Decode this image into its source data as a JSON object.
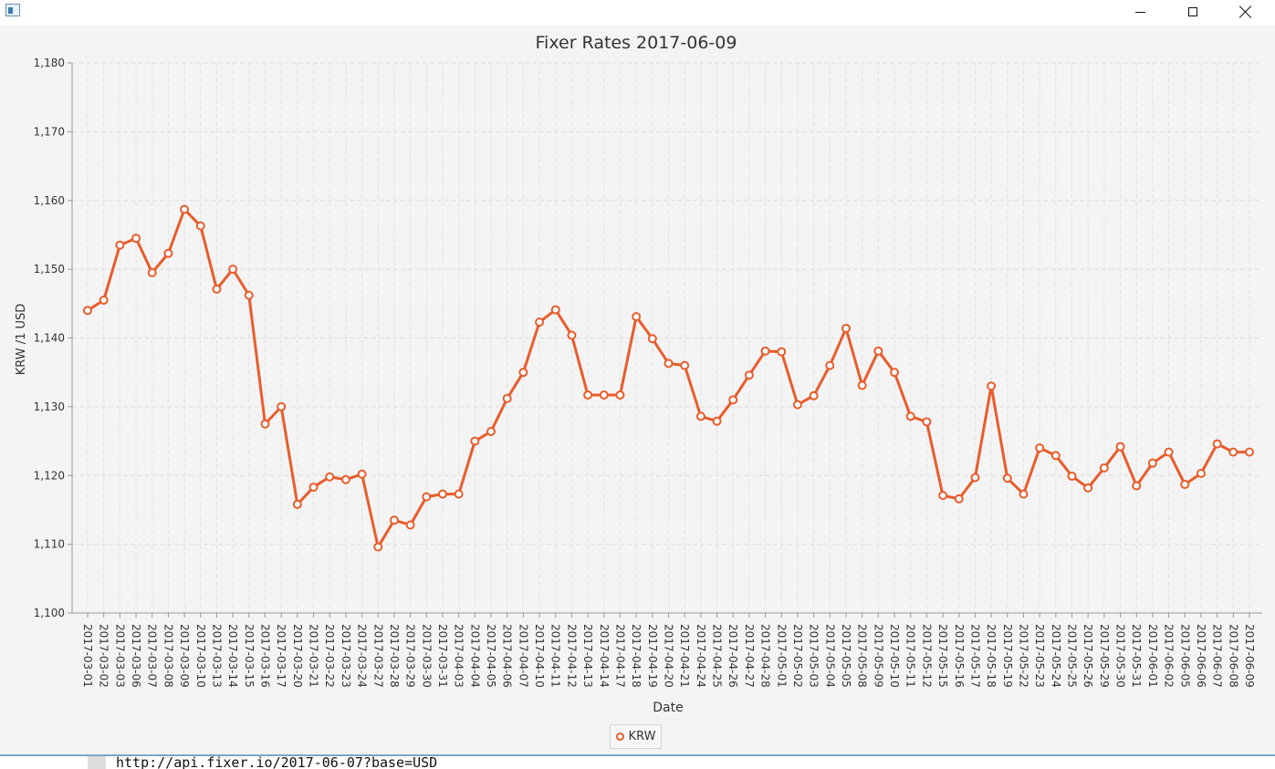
{
  "window": {
    "app_icon": "java-window-icon",
    "minimize_icon": "minimize-icon",
    "maximize_icon": "maximize-icon",
    "close_icon": "close-icon"
  },
  "chart_data": {
    "type": "line",
    "title": "Fixer Rates 2017-06-09",
    "xlabel": "Date",
    "ylabel": "KRW /1 USD",
    "ylim": [
      1100,
      1180
    ],
    "yticks": [
      1100,
      1110,
      1120,
      1130,
      1140,
      1150,
      1160,
      1170,
      1180
    ],
    "ytick_labels": [
      "1,100",
      "1,110",
      "1,120",
      "1,130",
      "1,140",
      "1,150",
      "1,160",
      "1,170",
      "1,180"
    ],
    "grid": true,
    "legend": "bottom-center",
    "color": "#e95c2b",
    "categories": [
      "2017-03-01",
      "2017-03-02",
      "2017-03-03",
      "2017-03-06",
      "2017-03-07",
      "2017-03-08",
      "2017-03-09",
      "2017-03-10",
      "2017-03-13",
      "2017-03-14",
      "2017-03-15",
      "2017-03-16",
      "2017-03-17",
      "2017-03-20",
      "2017-03-21",
      "2017-03-22",
      "2017-03-23",
      "2017-03-24",
      "2017-03-27",
      "2017-03-28",
      "2017-03-29",
      "2017-03-30",
      "2017-03-31",
      "2017-04-03",
      "2017-04-04",
      "2017-04-05",
      "2017-04-06",
      "2017-04-07",
      "2017-04-10",
      "2017-04-11",
      "2017-04-12",
      "2017-04-13",
      "2017-04-14",
      "2017-04-17",
      "2017-04-18",
      "2017-04-19",
      "2017-04-20",
      "2017-04-21",
      "2017-04-24",
      "2017-04-25",
      "2017-04-26",
      "2017-04-27",
      "2017-04-28",
      "2017-05-01",
      "2017-05-02",
      "2017-05-03",
      "2017-05-04",
      "2017-05-05",
      "2017-05-08",
      "2017-05-09",
      "2017-05-10",
      "2017-05-11",
      "2017-05-12",
      "2017-05-15",
      "2017-05-16",
      "2017-05-17",
      "2017-05-18",
      "2017-05-19",
      "2017-05-22",
      "2017-05-23",
      "2017-05-24",
      "2017-05-25",
      "2017-05-26",
      "2017-05-29",
      "2017-05-30",
      "2017-05-31",
      "2017-06-01",
      "2017-06-02",
      "2017-06-05",
      "2017-06-06",
      "2017-06-07",
      "2017-06-08",
      "2017-06-09"
    ],
    "series": [
      {
        "name": "KRW",
        "values": [
          1144.0,
          1145.5,
          1153.5,
          1154.5,
          1149.5,
          1152.3,
          1158.7,
          1156.3,
          1147.1,
          1150.0,
          1146.2,
          1127.5,
          1130.0,
          1115.8,
          1118.3,
          1119.8,
          1119.4,
          1120.2,
          1109.6,
          1113.5,
          1112.8,
          1116.9,
          1117.3,
          1117.3,
          1125.0,
          1126.4,
          1131.2,
          1135.0,
          1142.3,
          1144.1,
          1140.4,
          1131.7,
          1131.7,
          1131.7,
          1143.1,
          1139.9,
          1136.3,
          1136.0,
          1128.6,
          1127.9,
          1131.0,
          1134.6,
          1138.1,
          1138.0,
          1130.3,
          1131.6,
          1136.0,
          1141.4,
          1133.1,
          1138.1,
          1135.0,
          1128.6,
          1127.8,
          1117.1,
          1116.6,
          1119.7,
          1133.0,
          1119.6,
          1117.3,
          1124.0,
          1122.9,
          1119.9,
          1118.2,
          1121.1,
          1124.2,
          1118.5,
          1121.8,
          1123.4,
          1118.7,
          1120.3,
          1124.6,
          1123.4,
          1123.4
        ]
      }
    ]
  },
  "legend": {
    "label": "KRW",
    "marker_icon": "circle-marker-icon"
  },
  "footer": {
    "url": "http://api.fixer.io/2017-06-07?base=USD"
  }
}
